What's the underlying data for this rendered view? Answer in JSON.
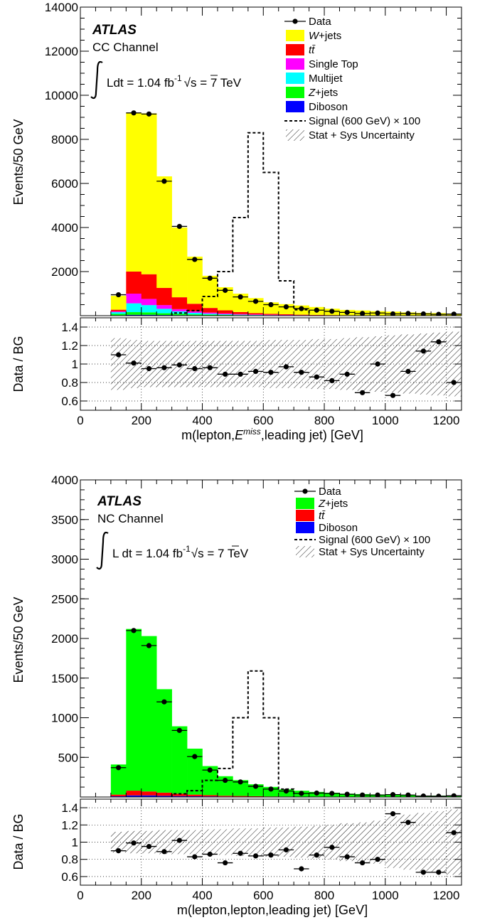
{
  "chart_data": [
    {
      "type": "bar",
      "panel": "top",
      "atlas_label": "ATLAS",
      "channel_label": "CC Channel",
      "lumi_label": "Ldt = 1.04 fb",
      "lumi_sup": "-1",
      "sqrt_label": "s = 7 TeV",
      "ylabel": "Events/50 GeV",
      "ratio_ylabel": "Data / BG",
      "xlabel_pre": "m(lepton,",
      "xlabel_italic": "E",
      "xlabel_sup": "miss",
      "xlabel_post": ",leading jet) [GeV]",
      "xlim": [
        0,
        1250
      ],
      "ylim": [
        0,
        14000
      ],
      "ratio_ylim": [
        0.5,
        1.5
      ],
      "yticks": [
        "2000",
        "4000",
        "6000",
        "8000",
        "10000",
        "12000",
        "14000"
      ],
      "ratio_yticks": [
        "0.6",
        "0.8",
        "1",
        "1.2",
        "1.4"
      ],
      "xticks": [
        "0",
        "200",
        "400",
        "600",
        "800",
        "1000",
        "1200"
      ],
      "grid": true,
      "legend_position": "top-right",
      "bin_edges": [
        100,
        150,
        200,
        250,
        300,
        350,
        400,
        450,
        500,
        550,
        600,
        650,
        700,
        750,
        800,
        850,
        900,
        950,
        1000,
        1050,
        1100,
        1150,
        1200,
        1250
      ],
      "stack": [
        {
          "name": "Diboson",
          "color": "#0000ff",
          "values": [
            20,
            40,
            40,
            30,
            25,
            20,
            15,
            12,
            10,
            8,
            6,
            5,
            4,
            3,
            3,
            2,
            2,
            2,
            1,
            1,
            1,
            1,
            1
          ]
        },
        {
          "name": "Z+jets",
          "color": "#00ff00",
          "values": [
            60,
            120,
            110,
            80,
            60,
            40,
            30,
            20,
            15,
            10,
            8,
            6,
            5,
            4,
            3,
            3,
            2,
            2,
            2,
            1,
            1,
            1,
            1
          ]
        },
        {
          "name": "Multijet",
          "color": "#00ffff",
          "values": [
            80,
            400,
            330,
            200,
            110,
            70,
            45,
            30,
            20,
            15,
            10,
            8,
            6,
            5,
            4,
            3,
            3,
            2,
            2,
            2,
            1,
            1,
            1
          ]
        },
        {
          "name": "Single Top",
          "color": "#ff00ff",
          "values": [
            40,
            440,
            280,
            170,
            100,
            70,
            50,
            40,
            30,
            25,
            20,
            15,
            10,
            8,
            6,
            5,
            4,
            3,
            3,
            2,
            2,
            2,
            1
          ]
        },
        {
          "name": "tt̄",
          "color": "#ff0000",
          "values": [
            70,
            1000,
            1120,
            780,
            540,
            340,
            210,
            140,
            90,
            60,
            40,
            30,
            20,
            15,
            10,
            8,
            6,
            5,
            4,
            3,
            2,
            2,
            1
          ]
        },
        {
          "name": "W+jets",
          "color": "#ffff00",
          "values": [
            630,
            7200,
            7300,
            5060,
            3160,
            2140,
            1460,
            1050,
            835,
            680,
            520,
            460,
            420,
            360,
            290,
            240,
            220,
            190,
            170,
            140,
            120,
            110,
            90
          ]
        }
      ],
      "data_label": "Data",
      "data": {
        "x": [
          125,
          175,
          225,
          275,
          325,
          375,
          425,
          475,
          525,
          575,
          625,
          675,
          725,
          775,
          825,
          875,
          925,
          975,
          1025,
          1075,
          1125,
          1175,
          1225
        ],
        "y": [
          950,
          9200,
          9150,
          6100,
          4050,
          2550,
          1700,
          1150,
          850,
          650,
          500,
          400,
          320,
          250,
          200,
          150,
          100,
          120,
          80,
          100,
          80,
          60,
          70
        ]
      },
      "signal_label": "Signal (600 GeV)",
      "signal_mult": "× 100",
      "signal": {
        "bin_edges": [
          300,
          350,
          400,
          450,
          500,
          550,
          600,
          650,
          700,
          750
        ],
        "values": [
          120,
          230,
          870,
          2000,
          4450,
          8300,
          6500,
          1580,
          270
        ]
      },
      "uncertainty_label": "Stat + Sys Uncertainty",
      "ratio": {
        "x": [
          125,
          175,
          225,
          275,
          325,
          375,
          425,
          475,
          525,
          575,
          625,
          675,
          725,
          775,
          825,
          875,
          925,
          975,
          1025,
          1075,
          1125,
          1175,
          1225
        ],
        "y": [
          1.1,
          1.01,
          0.95,
          0.96,
          0.99,
          0.95,
          0.96,
          0.89,
          0.89,
          0.92,
          0.91,
          0.97,
          0.91,
          0.86,
          0.82,
          0.89,
          0.69,
          1.0,
          0.66,
          0.92,
          1.14,
          1.24,
          0.8
        ]
      },
      "ratio_band": {
        "lo": [
          0.72,
          0.74,
          0.75,
          0.75,
          0.75,
          0.75,
          0.75,
          0.75,
          0.75,
          0.75,
          0.74,
          0.74,
          0.74,
          0.73,
          0.73,
          0.72,
          0.71,
          0.7,
          0.69,
          0.68,
          0.67,
          0.66,
          0.65
        ],
        "hi": [
          1.28,
          1.26,
          1.25,
          1.25,
          1.25,
          1.25,
          1.25,
          1.25,
          1.25,
          1.25,
          1.26,
          1.26,
          1.26,
          1.27,
          1.27,
          1.28,
          1.29,
          1.3,
          1.31,
          1.32,
          1.33,
          1.34,
          1.35
        ]
      }
    },
    {
      "type": "bar",
      "panel": "bottom",
      "atlas_label": "ATLAS",
      "channel_label": "NC Channel",
      "lumi_label": "L dt = 1.04 fb",
      "lumi_sup": "-1",
      "sqrt_label": "s = 7 TeV",
      "ylabel": "Events/50 GeV",
      "ratio_ylabel": "Data / BG",
      "xlabel_pre": "m(lepton,lepton,leading jet) [GeV]",
      "xlabel_italic": "",
      "xlabel_sup": "",
      "xlabel_post": "",
      "xlim": [
        0,
        1250
      ],
      "ylim": [
        0,
        4000
      ],
      "ratio_ylim": [
        0.5,
        1.5
      ],
      "yticks": [
        "500",
        "1000",
        "1500",
        "2000",
        "2500",
        "3000",
        "3500",
        "4000"
      ],
      "ratio_yticks": [
        "0.6",
        "0.8",
        "1",
        "1.2",
        "1.4"
      ],
      "xticks": [
        "0",
        "200",
        "400",
        "600",
        "800",
        "1000",
        "1200"
      ],
      "grid": true,
      "legend_position": "top-right",
      "bin_edges": [
        100,
        150,
        200,
        250,
        300,
        350,
        400,
        450,
        500,
        550,
        600,
        650,
        700,
        750,
        800,
        850,
        900,
        950,
        1000,
        1050,
        1100,
        1150,
        1200,
        1250
      ],
      "stack": [
        {
          "name": "Diboson",
          "color": "#0000ff",
          "values": [
            10,
            20,
            20,
            15,
            12,
            10,
            8,
            6,
            5,
            4,
            3,
            3,
            2,
            2,
            2,
            1,
            1,
            1,
            1,
            1,
            1,
            1,
            1
          ]
        },
        {
          "name": "tt̄",
          "color": "#ff0000",
          "values": [
            20,
            60,
            50,
            40,
            30,
            20,
            15,
            10,
            8,
            6,
            4,
            3,
            2,
            2,
            2,
            1,
            1,
            1,
            1,
            1,
            1,
            1,
            1
          ]
        },
        {
          "name": "Z+jets",
          "color": "#00ff00",
          "values": [
            380,
            2040,
            1960,
            1305,
            850,
            580,
            367,
            246,
            200,
            150,
            120,
            90,
            75,
            60,
            50,
            40,
            35,
            30,
            25,
            20,
            15,
            15,
            10
          ]
        }
      ],
      "data_label": "Data",
      "data": {
        "x": [
          125,
          175,
          225,
          275,
          325,
          375,
          425,
          475,
          525,
          575,
          625,
          675,
          725,
          775,
          825,
          875,
          925,
          975,
          1025,
          1075,
          1125,
          1175,
          1225
        ],
        "y": [
          370,
          2100,
          1910,
          1200,
          840,
          510,
          340,
          210,
          190,
          135,
          100,
          75,
          45,
          50,
          45,
          35,
          25,
          25,
          30,
          25,
          12,
          10,
          15
        ]
      },
      "signal_label": "Signal (600 GeV)",
      "signal_mult": "× 100",
      "signal": {
        "bin_edges": [
          300,
          350,
          400,
          450,
          500,
          550,
          600,
          650,
          700
        ],
        "values": [
          40,
          80,
          210,
          360,
          1000,
          1590,
          1000,
          100
        ]
      },
      "uncertainty_label": "Stat + Sys Uncertainty",
      "ratio": {
        "x": [
          125,
          175,
          225,
          275,
          325,
          375,
          425,
          475,
          525,
          575,
          625,
          675,
          725,
          775,
          825,
          875,
          925,
          975,
          1025,
          1075,
          1125,
          1175,
          1225
        ],
        "y": [
          0.9,
          0.99,
          0.95,
          0.89,
          1.02,
          0.83,
          0.86,
          0.76,
          0.87,
          0.84,
          0.85,
          0.91,
          0.69,
          0.85,
          0.94,
          0.83,
          0.76,
          0.8,
          1.33,
          1.23,
          0.65,
          0.65,
          1.11
        ]
      },
      "ratio_band": {
        "lo": [
          0.88,
          0.87,
          0.87,
          0.86,
          0.86,
          0.86,
          0.85,
          0.85,
          0.84,
          0.84,
          0.83,
          0.83,
          0.82,
          0.81,
          0.8,
          0.78,
          0.77,
          0.75,
          0.7,
          0.68,
          0.66,
          0.64,
          0.62
        ],
        "hi": [
          1.12,
          1.13,
          1.13,
          1.14,
          1.14,
          1.14,
          1.15,
          1.15,
          1.16,
          1.16,
          1.17,
          1.17,
          1.18,
          1.19,
          1.2,
          1.22,
          1.23,
          1.25,
          1.3,
          1.32,
          1.34,
          1.36,
          1.38
        ]
      }
    }
  ]
}
